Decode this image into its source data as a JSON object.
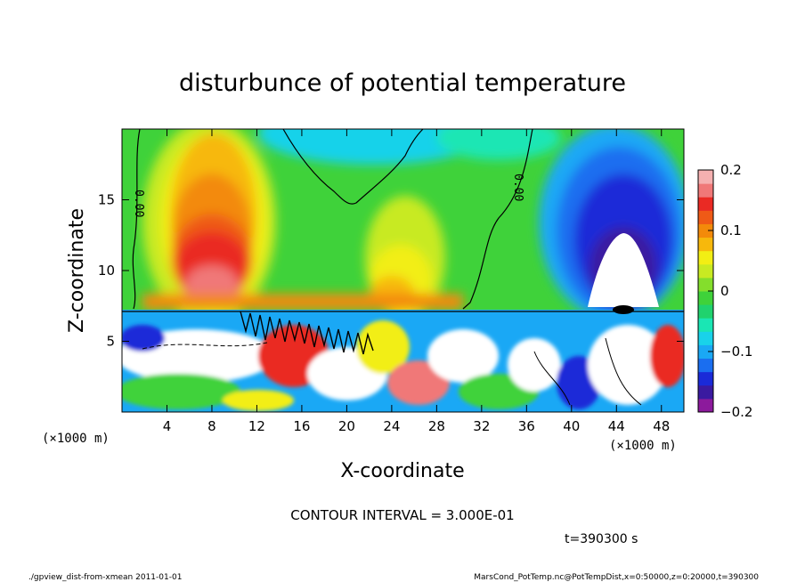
{
  "chart_data": {
    "type": "heatmap",
    "title": "disturbunce of potential temperature",
    "xlabel": "X-coordinate",
    "ylabel": "Z-coordinate",
    "x_unit_left": "(×1000 m)",
    "x_unit_right": "(×1000 m)",
    "xlim": [
      0,
      50
    ],
    "ylim": [
      0,
      20
    ],
    "x_ticks": [
      4,
      8,
      12,
      16,
      20,
      24,
      28,
      32,
      36,
      40,
      44,
      48
    ],
    "y_ticks": [
      5,
      10,
      15
    ],
    "colorbar": {
      "range": [
        -0.2,
        0.2
      ],
      "tick_values": [
        -0.2,
        -0.1,
        0,
        0.1,
        0.2
      ],
      "tick_labels": [
        "−0.2",
        "−0.1",
        "0",
        "0.1",
        "0.2"
      ],
      "colors": [
        "#8c1a9c",
        "#3a1aa0",
        "#1a2ad8",
        "#1a6ef0",
        "#1aa8f5",
        "#19d2ea",
        "#1ae6b4",
        "#20d26e",
        "#3fd23a",
        "#84de2c",
        "#c8ea22",
        "#f2ee14",
        "#f7b80c",
        "#f38a0a",
        "#ef5a16",
        "#ea2a24",
        "#f07878",
        "#f5b0b0"
      ]
    },
    "contour_label": "0.00",
    "contour_interval_text": "CONTOUR INTERVAL = 3.000E-01",
    "time_text": "t=390300 s"
  },
  "footer": {
    "left": "./gpview_dist-from-xmean  2011-01-01",
    "right": "MarsCond_PotTemp.nc@PotTempDist,x=0:50000,z=0:20000,t=390300"
  }
}
